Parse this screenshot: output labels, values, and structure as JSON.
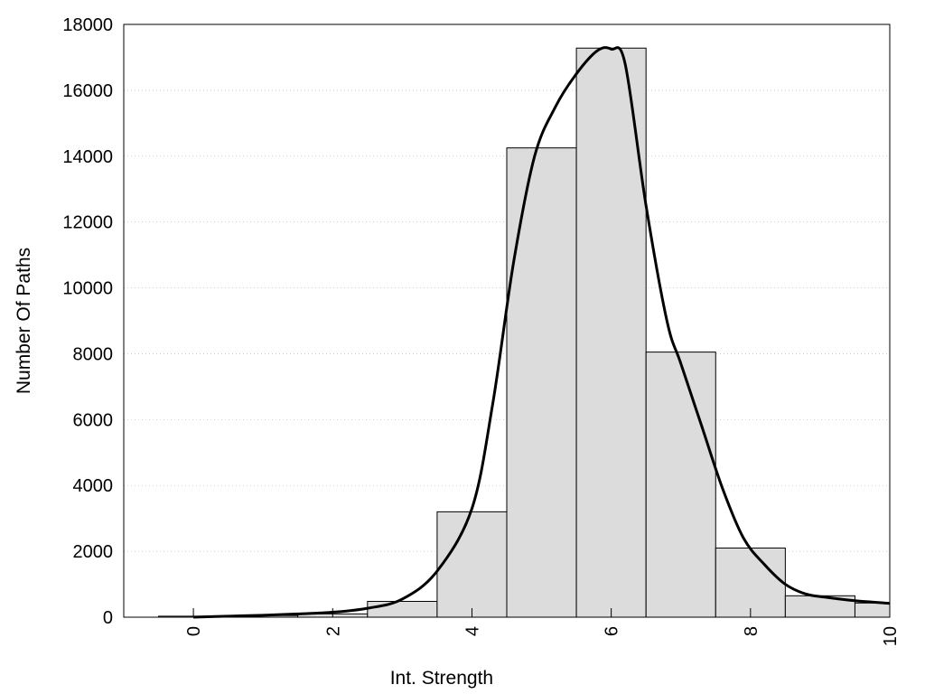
{
  "chart_data": {
    "type": "bar",
    "title": "",
    "xlabel": "Int. Strength",
    "ylabel": "Number Of Paths",
    "xlim": [
      -1,
      10
    ],
    "ylim": [
      0,
      18000
    ],
    "x_ticks": [
      0,
      2,
      4,
      6,
      8,
      10
    ],
    "y_ticks": [
      0,
      2000,
      4000,
      6000,
      8000,
      10000,
      12000,
      14000,
      16000,
      18000
    ],
    "grid": "horizontal dotted",
    "bar_fill": "#dcdcdc",
    "line_color": "#000000",
    "bars": [
      {
        "x": 0,
        "value": 30
      },
      {
        "x": 1,
        "value": 50
      },
      {
        "x": 2,
        "value": 100
      },
      {
        "x": 3,
        "value": 480
      },
      {
        "x": 4,
        "value": 3200
      },
      {
        "x": 5,
        "value": 14250
      },
      {
        "x": 6,
        "value": 17280
      },
      {
        "x": 7,
        "value": 8050
      },
      {
        "x": 8,
        "value": 2100
      },
      {
        "x": 9,
        "value": 650
      },
      {
        "x": 10,
        "value": 430
      }
    ],
    "series": [
      {
        "type": "line",
        "x": [
          0,
          0.5,
          1,
          1.5,
          2,
          2.5,
          3,
          3.5,
          4,
          4.3,
          4.6,
          4.9,
          5.2,
          5.5,
          5.8,
          6.0,
          6.2,
          6.5,
          6.8,
          7.0,
          7.3,
          7.6,
          7.9,
          8.2,
          8.5,
          8.8,
          9.1,
          9.5,
          10
        ],
        "y": [
          0,
          30,
          60,
          100,
          150,
          270,
          550,
          1400,
          3300,
          6500,
          10800,
          14000,
          15500,
          16500,
          17200,
          17250,
          16800,
          12500,
          9000,
          7700,
          5800,
          3900,
          2400,
          1600,
          1000,
          700,
          600,
          500,
          420
        ]
      }
    ]
  }
}
